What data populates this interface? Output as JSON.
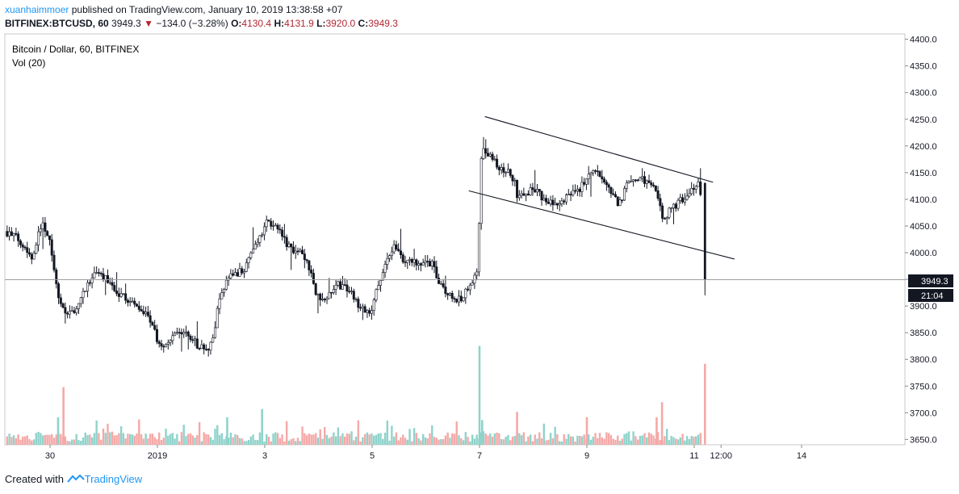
{
  "header": {
    "author": "xuanhaimmoer",
    "published": "published on TradingView.com, January 10, 2019 13:38:58 +07",
    "symbol": "BITFINEX:BTCUSD, 60",
    "last": "3949.3",
    "change_arrow": "▼",
    "change": "−134.0 (−3.28%)",
    "o_label": "O:",
    "o": "4130.4",
    "h_label": "H:",
    "h": "4131.9",
    "l_label": "L:",
    "l": "3920.0",
    "c_label": "C:",
    "c": "3949.3"
  },
  "legend": {
    "title": "Bitcoin / Dollar, 60, BITFINEX",
    "vol": "Vol (20)"
  },
  "footer": {
    "created": "Created with",
    "brand": "TradingView"
  },
  "colors": {
    "up": "#26a69a",
    "down": "#ef5350",
    "vol_up": "#8fd3cb",
    "vol_down": "#f4a9a8",
    "candle": "#131722",
    "price_line": "#9e9e9e"
  },
  "chart_data": {
    "type": "candlestick",
    "title": "Bitcoin / Dollar, 60, BITFINEX",
    "price_axis": {
      "range": [
        3640,
        4410
      ],
      "ticks": [
        "4400.0",
        "4350.0",
        "4300.0",
        "4250.0",
        "4200.0",
        "4150.0",
        "4100.0",
        "4050.0",
        "4000.0",
        "3950.0",
        "3900.0",
        "3850.0",
        "3800.0",
        "3750.0",
        "3700.0",
        "3650.0"
      ],
      "last_price_label": "3949.3",
      "countdown_label": "21:04"
    },
    "time_axis": {
      "ticks": [
        {
          "label": "30",
          "day": 0
        },
        {
          "label": "2019",
          "day": 2
        },
        {
          "label": "3",
          "day": 4
        },
        {
          "label": "5",
          "day": 6
        },
        {
          "label": "7",
          "day": 8
        },
        {
          "label": "9",
          "day": 10
        },
        {
          "label": "11",
          "day": 12
        },
        {
          "label": "12:00",
          "day": 12.5
        },
        {
          "label": "14",
          "day": 14
        }
      ]
    },
    "price_path": [
      [
        -0.8,
        4040
      ],
      [
        -0.6,
        4030
      ],
      [
        -0.45,
        4015
      ],
      [
        -0.3,
        3990
      ],
      [
        -0.1,
        4060
      ],
      [
        0.05,
        4020
      ],
      [
        0.18,
        3925
      ],
      [
        0.35,
        3880
      ],
      [
        0.55,
        3900
      ],
      [
        0.7,
        3935
      ],
      [
        0.9,
        3960
      ],
      [
        1.1,
        3950
      ],
      [
        1.3,
        3925
      ],
      [
        1.5,
        3910
      ],
      [
        1.7,
        3900
      ],
      [
        1.85,
        3880
      ],
      [
        1.95,
        3870
      ],
      [
        2.05,
        3825
      ],
      [
        2.2,
        3830
      ],
      [
        2.4,
        3845
      ],
      [
        2.6,
        3850
      ],
      [
        2.8,
        3825
      ],
      [
        3.0,
        3815
      ],
      [
        3.1,
        3850
      ],
      [
        3.2,
        3920
      ],
      [
        3.35,
        3950
      ],
      [
        3.5,
        3960
      ],
      [
        3.65,
        3970
      ],
      [
        3.8,
        4000
      ],
      [
        3.95,
        4030
      ],
      [
        4.1,
        4060
      ],
      [
        4.3,
        4040
      ],
      [
        4.5,
        4010
      ],
      [
        4.7,
        4000
      ],
      [
        4.85,
        3980
      ],
      [
        5.0,
        3920
      ],
      [
        5.2,
        3915
      ],
      [
        5.4,
        3940
      ],
      [
        5.6,
        3930
      ],
      [
        5.8,
        3900
      ],
      [
        6.0,
        3880
      ],
      [
        6.15,
        3940
      ],
      [
        6.3,
        3985
      ],
      [
        6.45,
        4010
      ],
      [
        6.6,
        3990
      ],
      [
        6.8,
        3985
      ],
      [
        7.0,
        3980
      ],
      [
        7.15,
        3980
      ],
      [
        7.3,
        3940
      ],
      [
        7.5,
        3920
      ],
      [
        7.7,
        3910
      ],
      [
        7.85,
        3940
      ],
      [
        7.95,
        3955
      ],
      [
        8.02,
        3970
      ],
      [
        8.05,
        4150
      ],
      [
        8.1,
        4190
      ],
      [
        8.25,
        4180
      ],
      [
        8.4,
        4160
      ],
      [
        8.6,
        4150
      ],
      [
        8.72,
        4130
      ],
      [
        8.75,
        4100
      ],
      [
        8.9,
        4110
      ],
      [
        9.0,
        4120
      ],
      [
        9.15,
        4110
      ],
      [
        9.3,
        4095
      ],
      [
        9.45,
        4090
      ],
      [
        9.6,
        4100
      ],
      [
        9.75,
        4110
      ],
      [
        9.9,
        4120
      ],
      [
        10.0,
        4130
      ],
      [
        10.1,
        4145
      ],
      [
        10.2,
        4160
      ],
      [
        10.35,
        4130
      ],
      [
        10.5,
        4110
      ],
      [
        10.65,
        4090
      ],
      [
        10.8,
        4130
      ],
      [
        11.0,
        4140
      ],
      [
        11.2,
        4130
      ],
      [
        11.35,
        4110
      ],
      [
        11.45,
        4060
      ],
      [
        11.6,
        4080
      ],
      [
        11.8,
        4100
      ],
      [
        11.95,
        4110
      ],
      [
        12.05,
        4120
      ],
      [
        12.1,
        4130
      ],
      [
        12.15,
        4135
      ],
      [
        12.2,
        3949.3
      ]
    ],
    "last_candle": {
      "open": 4130.4,
      "high": 4131.9,
      "low": 3920.0,
      "close": 3949.3
    },
    "channel_lines": [
      {
        "from": [
          8.1,
          4255
        ],
        "to": [
          12.35,
          4132
        ]
      },
      {
        "from": [
          7.8,
          4116
        ],
        "to": [
          12.75,
          3988
        ]
      }
    ],
    "volume_spikes": [
      {
        "day": 0.25,
        "height": 0.42,
        "up": false
      },
      {
        "day": 0.15,
        "height": 0.2,
        "up": true
      },
      {
        "day": 3.3,
        "height": 0.2,
        "up": true
      },
      {
        "day": 3.95,
        "height": 0.26,
        "up": true
      },
      {
        "day": 8.0,
        "height": 0.72,
        "up": true
      },
      {
        "day": 8.05,
        "height": 0.18,
        "up": true
      },
      {
        "day": 8.7,
        "height": 0.24,
        "up": false
      },
      {
        "day": 10.0,
        "height": 0.2,
        "up": false
      },
      {
        "day": 11.4,
        "height": 0.31,
        "up": false
      },
      {
        "day": 11.3,
        "height": 0.2,
        "up": false
      },
      {
        "day": 12.2,
        "height": 0.59,
        "up": false
      }
    ]
  }
}
